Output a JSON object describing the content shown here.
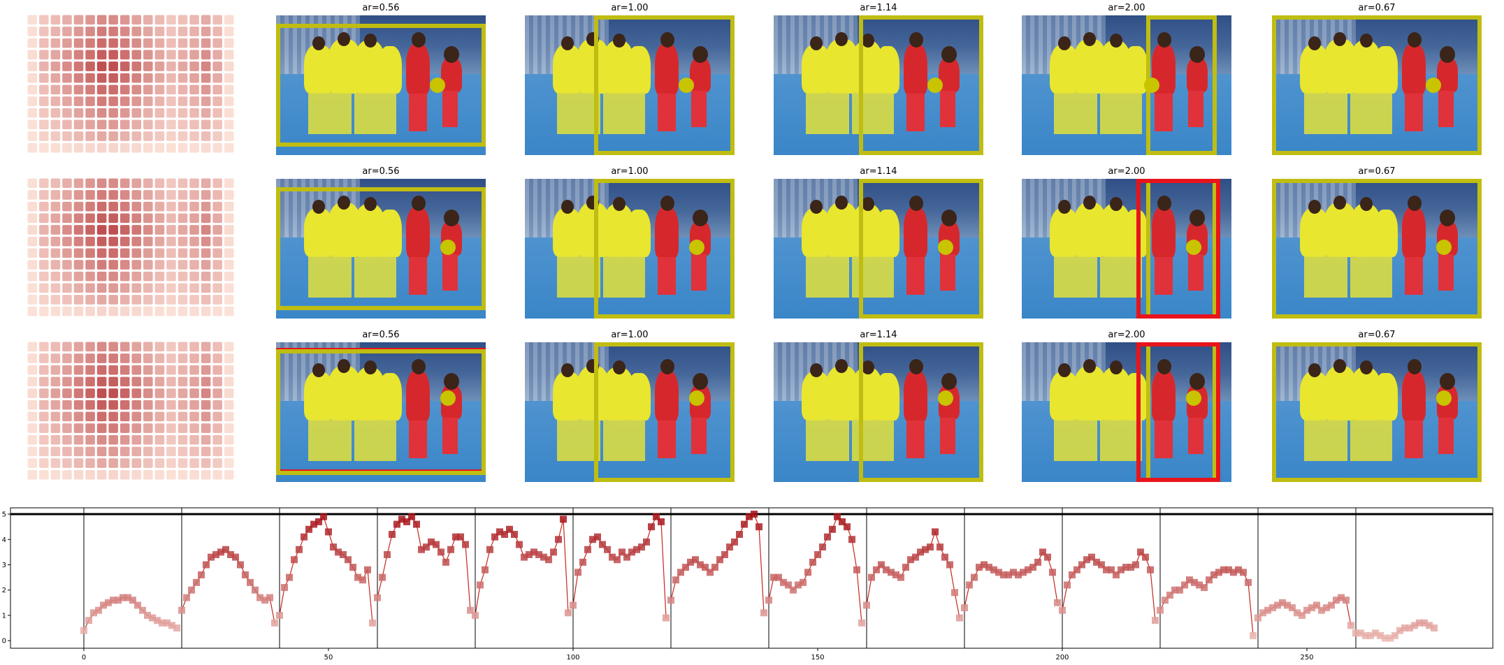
{
  "colors": {
    "accent_box": "#c0bd12",
    "alt_box": "#e8141c",
    "point": "#c8c400",
    "heat_low": "#fde5db",
    "heat_high": "#a50f15"
  },
  "tile_titles": [
    "ar=0.56",
    "ar=1.00",
    "ar=1.14",
    "ar=2.00",
    "ar=0.67"
  ],
  "rows": [
    {
      "boxes": [
        {
          "type": "yellow",
          "dot": [
            0.77,
            0.5
          ]
        },
        {
          "type": "yellow",
          "dot": [
            0.77,
            0.5
          ]
        },
        {
          "type": "yellow",
          "dot": [
            0.77,
            0.5
          ]
        },
        {
          "type": "yellow",
          "dot": [
            0.62,
            0.5
          ]
        },
        {
          "type": "yellow",
          "dot": [
            0.77,
            0.5
          ]
        }
      ]
    },
    {
      "boxes": [
        {
          "type": "yellow",
          "dot": [
            0.82,
            0.49
          ]
        },
        {
          "type": "yellow",
          "dot": [
            0.82,
            0.49
          ]
        },
        {
          "type": "yellow",
          "dot": [
            0.82,
            0.49
          ]
        },
        {
          "type": "yellow+red",
          "dot": [
            0.82,
            0.49
          ]
        },
        {
          "type": "yellow",
          "dot": [
            0.82,
            0.49
          ]
        }
      ]
    },
    {
      "boxes": [
        {
          "type": "yellow+red",
          "dot": [
            0.82,
            0.4
          ]
        },
        {
          "type": "yellow",
          "dot": [
            0.82,
            0.4
          ]
        },
        {
          "type": "yellow",
          "dot": [
            0.82,
            0.4
          ]
        },
        {
          "type": "yellow+red",
          "dot": [
            0.82,
            0.4
          ]
        },
        {
          "type": "yellow",
          "dot": [
            0.82,
            0.4
          ]
        }
      ]
    }
  ],
  "chart_data": {
    "type": "line",
    "xlim": [
      -15,
      288
    ],
    "ylim": [
      -0.3,
      5.25
    ],
    "xticks": [
      0,
      50,
      100,
      150,
      200,
      250
    ],
    "yticks": [
      0,
      1,
      2,
      3,
      4,
      5
    ],
    "grid": false,
    "hline": 5,
    "vlines": [
      0,
      20,
      40,
      60,
      80,
      100,
      120,
      140,
      160,
      180,
      200,
      220,
      240,
      260
    ],
    "y": [
      0.4,
      0.8,
      1.1,
      1.2,
      1.4,
      1.5,
      1.6,
      1.6,
      1.7,
      1.7,
      1.6,
      1.4,
      1.2,
      1.0,
      0.9,
      0.8,
      0.7,
      0.7,
      0.6,
      0.5,
      1.2,
      1.7,
      2.0,
      2.3,
      2.6,
      3.0,
      3.3,
      3.4,
      3.5,
      3.6,
      3.4,
      3.3,
      3.0,
      2.6,
      2.3,
      2.0,
      1.7,
      1.6,
      1.7,
      0.7,
      1.0,
      2.1,
      2.5,
      3.2,
      3.6,
      4.1,
      4.4,
      4.6,
      4.7,
      4.9,
      4.3,
      3.7,
      3.5,
      3.4,
      3.2,
      2.9,
      2.5,
      2.4,
      2.8,
      0.7,
      1.7,
      2.5,
      3.4,
      4.2,
      4.6,
      4.8,
      4.7,
      4.9,
      4.6,
      3.6,
      3.7,
      3.9,
      3.8,
      3.5,
      3.1,
      3.6,
      4.1,
      4.1,
      3.8,
      1.2,
      1.0,
      2.2,
      2.8,
      3.6,
      4.1,
      4.3,
      4.2,
      4.4,
      4.2,
      3.8,
      3.3,
      3.4,
      3.5,
      3.4,
      3.3,
      3.2,
      3.5,
      4.0,
      4.8,
      1.1,
      1.4,
      2.7,
      3.1,
      3.6,
      4.0,
      4.1,
      3.8,
      3.6,
      3.3,
      3.2,
      3.5,
      3.3,
      3.5,
      3.6,
      3.7,
      3.9,
      4.5,
      4.9,
      4.7,
      0.9,
      1.6,
      2.4,
      2.7,
      2.9,
      3.1,
      3.2,
      3.0,
      2.9,
      2.7,
      2.9,
      3.2,
      3.4,
      3.7,
      3.9,
      4.2,
      4.6,
      4.9,
      5.0,
      4.5,
      1.1,
      1.6,
      2.5,
      2.5,
      2.3,
      2.2,
      2.0,
      2.2,
      2.3,
      2.7,
      3.1,
      3.4,
      3.7,
      4.1,
      4.4,
      4.9,
      4.7,
      4.5,
      4.0,
      2.8,
      0.7,
      1.4,
      2.5,
      2.8,
      3.0,
      2.8,
      2.7,
      2.6,
      2.5,
      2.9,
      3.2,
      3.3,
      3.5,
      3.6,
      3.7,
      4.3,
      3.7,
      3.3,
      3.0,
      1.9,
      0.9,
      1.3,
      2.2,
      2.5,
      2.9,
      3.0,
      2.9,
      2.8,
      2.7,
      2.6,
      2.6,
      2.7,
      2.6,
      2.7,
      2.8,
      2.9,
      3.1,
      3.5,
      3.3,
      2.7,
      1.5,
      1.2,
      2.2,
      2.6,
      2.8,
      3.0,
      3.2,
      3.3,
      3.1,
      3.0,
      2.8,
      2.8,
      2.6,
      2.8,
      2.9,
      2.9,
      3.0,
      3.5,
      3.3,
      2.8,
      0.8,
      1.2,
      1.6,
      1.8,
      2.0,
      2.0,
      2.2,
      2.4,
      2.3,
      2.2,
      2.1,
      2.4,
      2.6,
      2.7,
      2.8,
      2.8,
      2.7,
      2.8,
      2.7,
      2.3,
      0.2,
      0.9,
      1.1,
      1.2,
      1.3,
      1.4,
      1.5,
      1.4,
      1.3,
      1.1,
      1.0,
      1.2,
      1.3,
      1.4,
      1.2,
      1.3,
      1.4,
      1.6,
      1.7,
      1.6,
      0.6,
      0.3,
      0.3,
      0.2,
      0.2,
      0.3,
      0.2,
      0.1,
      0.1,
      0.2,
      0.4,
      0.5,
      0.5,
      0.6,
      0.7,
      0.7,
      0.6,
      0.5
    ]
  }
}
